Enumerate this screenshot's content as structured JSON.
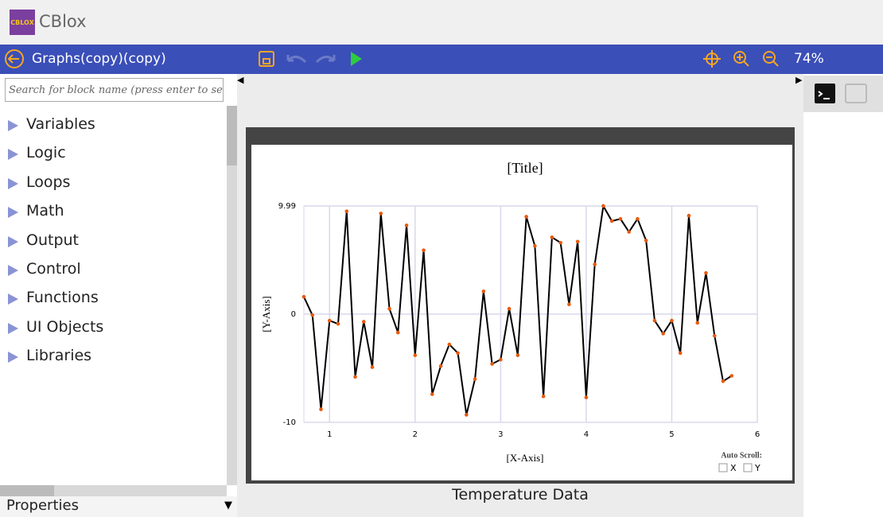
{
  "app": {
    "logo": "CBLOX",
    "name": "CBlox"
  },
  "toolbar": {
    "project": "Graphs(copy)(copy)",
    "zoom": "74%"
  },
  "sidebar": {
    "search_placeholder": "Search for block name (press enter to search)",
    "categories": [
      "Variables",
      "Logic",
      "Loops",
      "Math",
      "Output",
      "Control",
      "Functions",
      "UI Objects",
      "Libraries"
    ],
    "properties": "Properties"
  },
  "chart_data": {
    "type": "line",
    "title": "[Title]",
    "x_label": "[X-Axis]",
    "y_label": "[Y-Axis]",
    "x": [
      0.7,
      0.8,
      0.9,
      1.0,
      1.1,
      1.2,
      1.3,
      1.4,
      1.5,
      1.6,
      1.7,
      1.8,
      1.9,
      2.0,
      2.1,
      2.2,
      2.3,
      2.4,
      2.5,
      2.6,
      2.7,
      2.8,
      2.9,
      3.0,
      3.1,
      3.2,
      3.3,
      3.4,
      3.5,
      3.6,
      3.7,
      3.8,
      3.9,
      4.0,
      4.1,
      4.2,
      4.3,
      4.4,
      4.5,
      4.6,
      4.7,
      4.8,
      4.9,
      5.0,
      5.1,
      5.2,
      5.3,
      5.4,
      5.5,
      5.6,
      5.7
    ],
    "values": [
      1.6,
      -0.1,
      -8.8,
      -0.6,
      -0.9,
      9.5,
      -5.8,
      -0.7,
      -4.9,
      9.3,
      0.5,
      -1.7,
      8.2,
      -3.8,
      5.9,
      -7.4,
      -4.8,
      -2.8,
      -3.6,
      -9.3,
      -6.0,
      2.1,
      -4.6,
      -4.2,
      0.5,
      -3.8,
      9.0,
      6.3,
      -7.6,
      7.1,
      6.6,
      0.9,
      6.7,
      -7.7,
      4.6,
      9.99,
      8.6,
      8.8,
      7.6,
      8.8,
      6.8,
      -0.6,
      -1.8,
      -0.6,
      -3.6,
      9.1,
      -0.8,
      3.8,
      -2.0,
      -6.2,
      -5.7
    ],
    "color": "#000000",
    "marker_color": "#e8590c",
    "xlim": [
      0.7,
      6
    ],
    "xticks": [
      1,
      2,
      3,
      4,
      5,
      6
    ],
    "ylim": [
      -10,
      9.99
    ],
    "yticks": [
      -10,
      0,
      9.99
    ],
    "grid": true
  },
  "auto_scroll": {
    "label": "Auto Scroll:",
    "x": "X",
    "y": "Y"
  },
  "caption": "Temperature Data"
}
